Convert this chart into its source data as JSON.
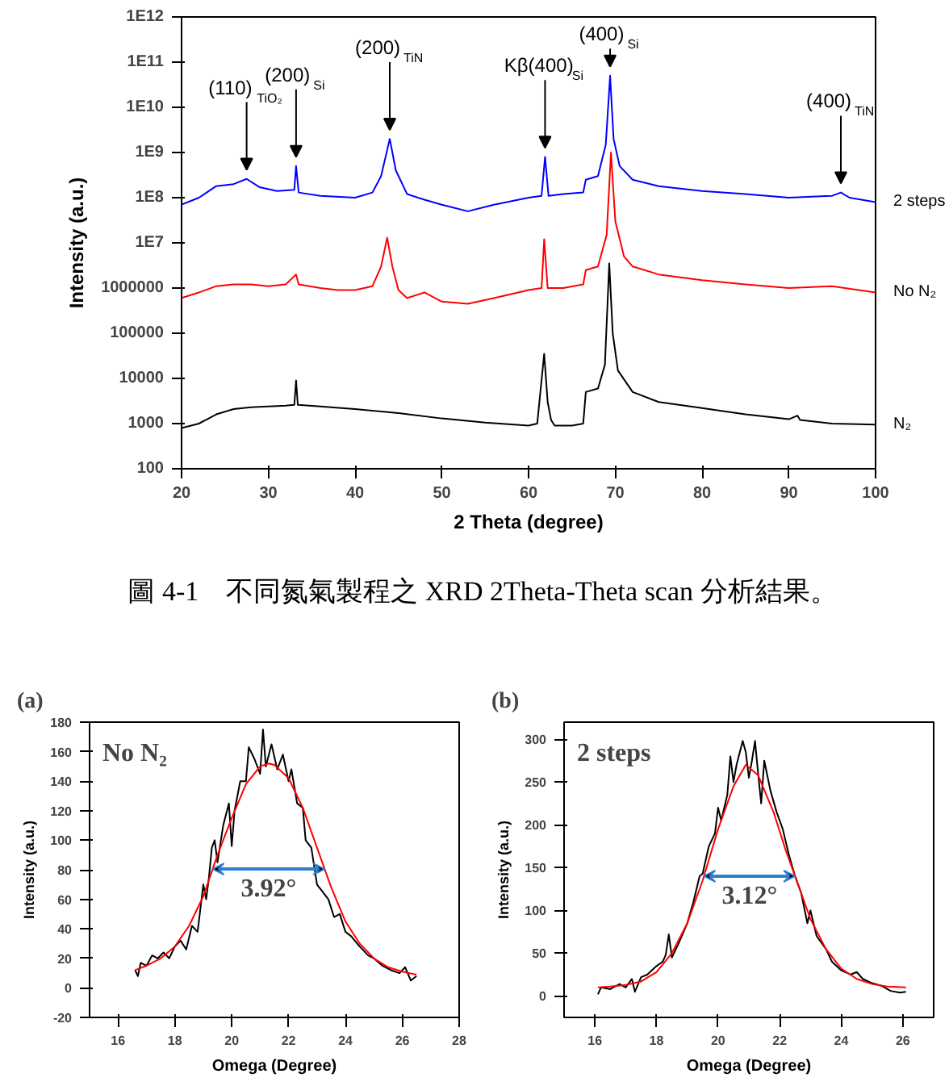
{
  "chart_data": [
    {
      "type": "line",
      "xlabel": "2 Theta (degree)",
      "ylabel": "Intensity (a.u.)",
      "log": "y",
      "xlim": [
        20,
        100
      ],
      "xticks": [
        20,
        30,
        40,
        50,
        60,
        70,
        80,
        90,
        100
      ],
      "ylim": [
        100,
        1000000000000.0
      ],
      "yticks": [
        100,
        1000,
        10000,
        100000,
        1000000,
        {
          "value": 10000000.0,
          "label": "1E7"
        },
        {
          "value": 100000000.0,
          "label": "1E8"
        },
        {
          "value": 1000000000.0,
          "label": "1E9"
        },
        {
          "value": 10000000000.0,
          "label": "1E10"
        },
        {
          "value": 100000000000.0,
          "label": "1E11"
        },
        {
          "value": 1000000000000.0,
          "label": "1E12"
        }
      ],
      "series": [
        {
          "name": "N₂",
          "color": "#000000",
          "x": [
            20,
            22,
            24,
            26,
            28,
            30,
            32,
            33,
            33.2,
            33.4,
            36,
            40,
            45,
            50,
            55,
            60,
            61,
            61.8,
            62.2,
            62.6,
            63,
            65,
            66.3,
            66.6,
            68,
            68.8,
            69.3,
            69.7,
            70.3,
            72,
            75,
            80,
            85,
            90,
            91,
            91.3,
            95,
            100
          ],
          "values": [
            800,
            1000,
            1600,
            2100,
            2300,
            2400,
            2500,
            2600,
            9000,
            2600,
            2400,
            2100,
            1700,
            1300,
            1050,
            900,
            1000,
            35000,
            3000,
            1200,
            900,
            900,
            1000,
            5000,
            6000,
            20000,
            3500000,
            100000,
            15000,
            5000,
            3000,
            2200,
            1600,
            1250,
            1500,
            1200,
            1000,
            950
          ]
        },
        {
          "name": "No N₂",
          "color": "#ff0000",
          "x": [
            20,
            22,
            24,
            26,
            28,
            30,
            32,
            33.2,
            33.5,
            36,
            38,
            40,
            42,
            43,
            43.7,
            44.3,
            45,
            46,
            48,
            50,
            53,
            56,
            60,
            61.5,
            61.8,
            62.2,
            64,
            66.3,
            66.6,
            68,
            69,
            69.5,
            70,
            71,
            72,
            75,
            80,
            85,
            90,
            95,
            100
          ],
          "values": [
            600000,
            800000,
            1100000,
            1200000,
            1200000,
            1100000,
            1200000,
            2000000,
            1200000,
            1000000,
            900000,
            900000,
            1100000,
            3000000,
            13000000,
            3000000,
            900000,
            600000,
            800000,
            500000,
            450000,
            600000,
            900000,
            1000000,
            12000000,
            1000000,
            1000000,
            1200000,
            2500000,
            3000000,
            15000000,
            1000000000,
            30000000,
            5000000,
            3000000,
            2000000,
            1500000,
            1200000,
            1000000,
            1100000,
            800000
          ]
        },
        {
          "name": "2 steps",
          "color": "#0000ff",
          "x": [
            20,
            22,
            24,
            26,
            27.5,
            29,
            31,
            33,
            33.2,
            33.5,
            36,
            40,
            42,
            43,
            44,
            44.7,
            46,
            48,
            50,
            53,
            56,
            60,
            61.5,
            61.9,
            62.3,
            64,
            66.3,
            66.6,
            68,
            68.9,
            69.4,
            69.8,
            70.5,
            72,
            75,
            80,
            85,
            90,
            95,
            96,
            97,
            100
          ],
          "values": [
            70000000,
            100000000,
            180000000,
            200000000,
            260000000,
            170000000,
            140000000,
            150000000,
            500000000,
            130000000,
            110000000,
            100000000,
            130000000,
            300000000,
            2000000000,
            400000000,
            120000000,
            90000000,
            70000000,
            50000000,
            70000000,
            100000000,
            110000000,
            800000000,
            110000000,
            120000000,
            130000000,
            250000000,
            300000000,
            1500000000,
            50000000000,
            2000000000,
            500000000,
            250000000,
            180000000,
            140000000,
            120000000,
            100000000,
            110000000,
            130000000,
            100000000,
            80000000
          ]
        }
      ],
      "annotations": [
        {
          "text": "(110)$_{TiO₂}$",
          "x": 27.5,
          "y": 260000000
        },
        {
          "text": "(200)$_{Si}$",
          "x": 33.2,
          "y": 500000000
        },
        {
          "text": "(200)$_{TiN}$",
          "x": 44,
          "y": 2000000000
        },
        {
          "text": "Kβ(400)$_{Si}$",
          "x": 61.9,
          "y": 800000000
        },
        {
          "text": "(400)$_{Si}$",
          "x": 69.4,
          "y": 50000000000
        },
        {
          "text": "(400)$_{TiN}$",
          "x": 96,
          "y": 130000000
        },
        "圖 4-1　不同氮氣製程之 XRD 2Theta-Theta scan 分析結果。"
      ]
    },
    {
      "type": "line",
      "title": "No N₂",
      "xlabel": "Omega (Degree)",
      "ylabel": "Intensity (a.u.)",
      "xlim": [
        15,
        28
      ],
      "xticks": [
        16,
        18,
        20,
        22,
        24,
        26,
        28
      ],
      "ylim": [
        -20,
        180
      ],
      "yticks": [
        -20,
        0,
        20,
        40,
        60,
        80,
        100,
        120,
        140,
        160,
        180
      ],
      "series": [
        {
          "color": "#000000",
          "x": [
            16.6,
            16.7,
            16.8,
            17,
            17.2,
            17.4,
            17.6,
            17.8,
            18,
            18.2,
            18.4,
            18.6,
            18.8,
            19,
            19.1,
            19.2,
            19.3,
            19.4,
            19.5,
            19.7,
            19.9,
            20,
            20.1,
            20.3,
            20.5,
            20.6,
            20.8,
            21,
            21.1,
            21.2,
            21.4,
            21.6,
            21.8,
            22,
            22.1,
            22.3,
            22.5,
            22.6,
            22.8,
            23,
            23.2,
            23.4,
            23.6,
            23.8,
            24,
            24.2,
            24.5,
            24.8,
            25,
            25.3,
            25.6,
            25.9,
            26.1,
            26.3,
            26.5
          ],
          "values": [
            12,
            8,
            17,
            15,
            22,
            20,
            24,
            20,
            28,
            32,
            26,
            42,
            38,
            70,
            60,
            75,
            95,
            100,
            85,
            110,
            125,
            96,
            120,
            140,
            140,
            163,
            155,
            145,
            175,
            150,
            165,
            148,
            158,
            140,
            148,
            125,
            122,
            100,
            95,
            70,
            65,
            60,
            48,
            50,
            38,
            35,
            28,
            22,
            20,
            15,
            12,
            10,
            14,
            5,
            8
          ]
        },
        {
          "color": "#ff0000",
          "x": [
            16.6,
            17,
            17.5,
            18,
            18.5,
            19,
            19.5,
            20,
            20.5,
            21,
            21.3,
            21.5,
            22,
            22.5,
            23,
            23.5,
            24,
            24.5,
            25,
            25.5,
            26,
            26.5
          ],
          "values": [
            12,
            15,
            20,
            28,
            42,
            62,
            90,
            115,
            138,
            150,
            152,
            151,
            142,
            122,
            95,
            68,
            45,
            30,
            20,
            14,
            11,
            9
          ]
        }
      ],
      "annotations": [
        "3.92°",
        "(a)"
      ]
    },
    {
      "type": "line",
      "title": "2 steps",
      "xlabel": "Omega (Degree)",
      "ylabel": "Intensity (a.u.)",
      "xlim": [
        15,
        27
      ],
      "xticks": [
        16,
        18,
        20,
        22,
        24,
        26
      ],
      "ylim": [
        -25,
        320
      ],
      "yticks": [
        0,
        50,
        100,
        150,
        200,
        250,
        300
      ],
      "series": [
        {
          "color": "#000000",
          "x": [
            16.1,
            16.2,
            16.5,
            16.8,
            17,
            17.2,
            17.3,
            17.5,
            17.7,
            18,
            18.2,
            18.3,
            18.4,
            18.5,
            18.7,
            19,
            19.2,
            19.4,
            19.5,
            19.7,
            19.9,
            20,
            20.1,
            20.3,
            20.4,
            20.5,
            20.6,
            20.8,
            20.9,
            21,
            21.1,
            21.2,
            21.3,
            21.4,
            21.5,
            21.7,
            21.9,
            22.1,
            22.3,
            22.5,
            22.7,
            22.9,
            23,
            23.2,
            23.5,
            23.7,
            24,
            24.3,
            24.5,
            24.7,
            25,
            25.3,
            25.6,
            25.9,
            26.1
          ],
          "values": [
            2,
            10,
            8,
            14,
            10,
            20,
            5,
            22,
            25,
            35,
            40,
            48,
            72,
            45,
            60,
            85,
            110,
            140,
            143,
            175,
            190,
            220,
            205,
            235,
            280,
            250,
            270,
            298,
            285,
            255,
            275,
            298,
            260,
            225,
            275,
            240,
            215,
            195,
            165,
            140,
            120,
            85,
            100,
            70,
            55,
            40,
            30,
            25,
            28,
            20,
            15,
            12,
            6,
            4,
            5
          ]
        },
        {
          "color": "#ff0000",
          "x": [
            16.1,
            16.5,
            17,
            17.5,
            18,
            18.5,
            19,
            19.5,
            20,
            20.5,
            20.9,
            21.3,
            21.8,
            22.2,
            22.5,
            23,
            23.5,
            24,
            24.5,
            25,
            25.5,
            26.1
          ],
          "values": [
            10,
            11,
            13,
            17,
            28,
            50,
            85,
            135,
            195,
            245,
            270,
            258,
            215,
            170,
            140,
            90,
            55,
            32,
            20,
            14,
            11,
            10
          ]
        }
      ],
      "annotations": [
        "3.12°",
        "(b)"
      ]
    }
  ]
}
